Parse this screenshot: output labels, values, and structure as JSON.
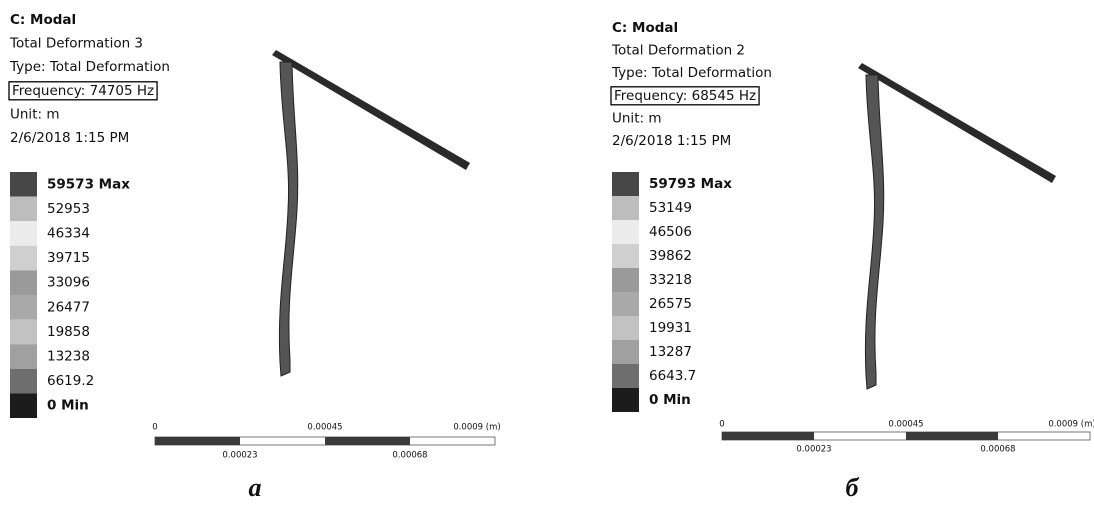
{
  "panels": [
    {
      "title": "C: Modal",
      "lines": [
        "Total Deformation 3",
        "Type: Total Deformation"
      ],
      "frequency": "Frequency: 74705 Hz",
      "after": [
        "Unit: m",
        "2/6/2018 1:15 PM"
      ],
      "legend": [
        "59573 Max",
        "52953",
        "46334",
        "39715",
        "33096",
        "26477",
        "19858",
        "13238",
        "6619.2",
        "0 Min"
      ],
      "scale_top": [
        "0",
        "0.00045",
        "0.0009 (m)"
      ],
      "scale_bottom": [
        "0.00023",
        "0.00068"
      ],
      "caption": "а"
    },
    {
      "title": "C: Modal",
      "lines": [
        "Total Deformation 2",
        "Type: Total Deformation"
      ],
      "frequency": "Frequency: 68545 Hz",
      "after": [
        "Unit: m",
        "2/6/2018 1:15 PM"
      ],
      "legend": [
        "59793 Max",
        "53149",
        "46506",
        "39862",
        "33218",
        "26575",
        "19931",
        "13287",
        "6643.7",
        "0 Min"
      ],
      "scale_top": [
        "0",
        "0.00045",
        "0.0009 (m)"
      ],
      "scale_bottom": [
        "0.00023",
        "0.00068"
      ],
      "caption": "б"
    }
  ],
  "legend_colors": [
    "#474747",
    "#bdbdbd",
    "#ececec",
    "#cfcfcf",
    "#9a9a9a",
    "#a9a9a9",
    "#c2c2c2",
    "#a0a0a0",
    "#6e6e6e",
    "#1c1c1c"
  ]
}
